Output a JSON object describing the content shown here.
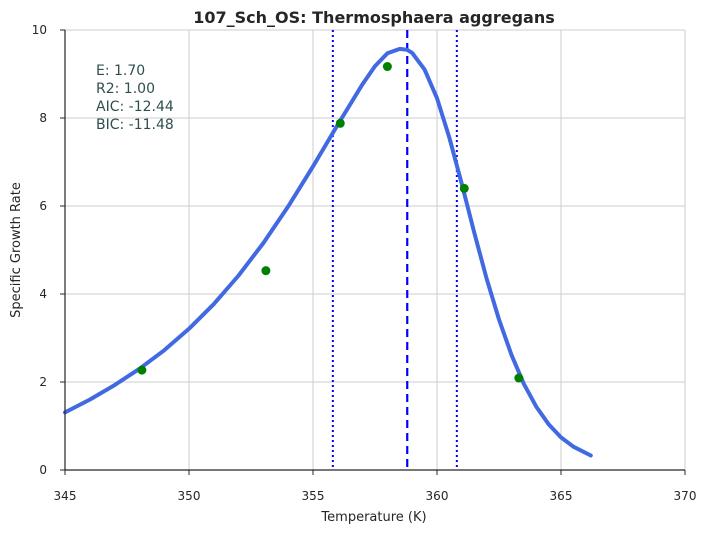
{
  "chart_data": {
    "type": "scatter",
    "title": "107_Sch_OS: Thermosphaera aggregans",
    "xlabel": "Temperature (K)",
    "ylabel": "Specific Growth Rate",
    "xlim": [
      345,
      370
    ],
    "ylim": [
      0,
      10
    ],
    "xticks": [
      345,
      350,
      355,
      360,
      365,
      370
    ],
    "yticks": [
      0,
      2,
      4,
      6,
      8,
      10
    ],
    "grid": true,
    "points": {
      "x": [
        348.1,
        353.1,
        356.1,
        358.0,
        361.1,
        363.3
      ],
      "y": [
        2.27,
        4.53,
        7.88,
        9.17,
        6.4,
        2.09
      ],
      "color": "#008000"
    },
    "fit_curve": {
      "x": [
        345,
        346,
        347,
        348,
        349,
        350,
        351,
        352,
        353,
        354,
        355,
        356,
        357,
        357.5,
        358,
        358.5,
        358.8,
        359,
        359.5,
        360,
        360.5,
        361,
        361.5,
        362,
        362.5,
        363,
        363.5,
        364,
        364.5,
        365,
        365.5,
        366.2
      ],
      "y": [
        1.31,
        1.6,
        1.93,
        2.3,
        2.72,
        3.21,
        3.77,
        4.42,
        5.16,
        5.99,
        6.9,
        7.85,
        8.77,
        9.18,
        9.47,
        9.57,
        9.55,
        9.48,
        9.1,
        8.45,
        7.55,
        6.5,
        5.4,
        4.35,
        3.42,
        2.62,
        1.96,
        1.44,
        1.04,
        0.74,
        0.53,
        0.33
      ],
      "color": "#4169e1"
    },
    "peak_line": {
      "x": 358.8,
      "color": "#0000ff",
      "style": "dashed"
    },
    "bound_lines": {
      "x": [
        355.8,
        360.8
      ],
      "color": "#0000ff",
      "style": "dotted"
    },
    "stats": [
      "E:  1.70",
      "R2:  1.00",
      "AIC: -12.44",
      "BIC: -11.48"
    ]
  }
}
